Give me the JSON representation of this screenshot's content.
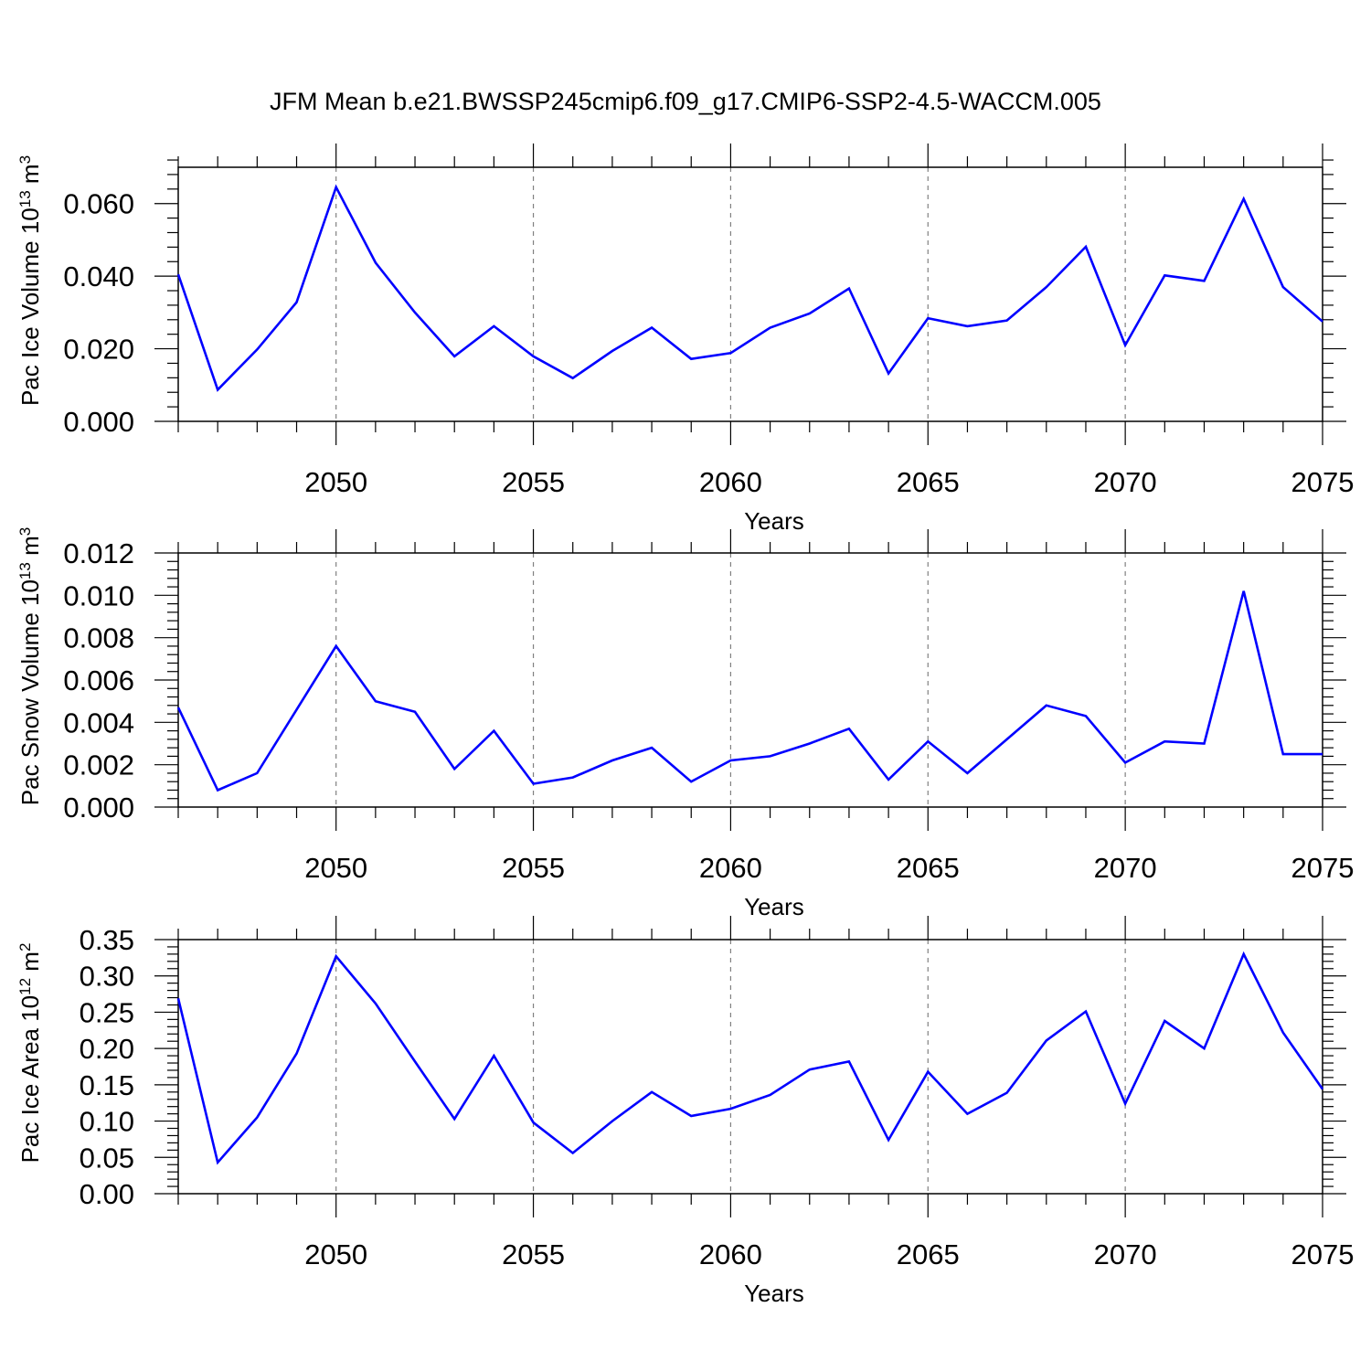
{
  "figure": {
    "title": "JFM Mean b.e21.BWSSP245cmip6.f09_g17.CMIP6-SSP2-4.5-WACCM.005",
    "line_color": "#0000ff",
    "grid_color": "#808080"
  },
  "chart_data": [
    {
      "type": "line",
      "xlabel": "Years",
      "ylabel": {
        "text": "Pac Ice Volume 10",
        "exp": "13",
        "unit": " m",
        "unit_exp": "3"
      },
      "xlim": [
        2046,
        2075
      ],
      "ylim": [
        0,
        0.07
      ],
      "xticks": [
        2050,
        2055,
        2060,
        2065,
        2070,
        2075
      ],
      "yticks": [
        0.0,
        0.02,
        0.04,
        0.06
      ],
      "ytick_labels": [
        "0.000",
        "0.020",
        "0.040",
        "0.060"
      ],
      "ytick_decimals": 3,
      "grid": "vertical dashed lines at labeled x ticks",
      "x": [
        2046,
        2047,
        2048,
        2049,
        2050,
        2051,
        2052,
        2053,
        2054,
        2055,
        2056,
        2057,
        2058,
        2059,
        2060,
        2061,
        2062,
        2063,
        2064,
        2065,
        2066,
        2067,
        2068,
        2069,
        2070,
        2071,
        2072,
        2073,
        2074,
        2075
      ],
      "y": [
        0.0405,
        0.0087,
        0.0198,
        0.0328,
        0.0645,
        0.0437,
        0.03,
        0.0179,
        0.0262,
        0.0179,
        0.0119,
        0.0194,
        0.0258,
        0.0172,
        0.0188,
        0.0258,
        0.0297,
        0.0366,
        0.0132,
        0.0284,
        0.0262,
        0.0278,
        0.037,
        0.0481,
        0.021,
        0.0402,
        0.0387,
        0.0613,
        0.037,
        0.0275
      ]
    },
    {
      "type": "line",
      "xlabel": "Years",
      "ylabel": {
        "text": "Pac Snow Volume 10",
        "exp": "13",
        "unit": " m",
        "unit_exp": "3"
      },
      "xlim": [
        2046,
        2075
      ],
      "ylim": [
        0,
        0.012
      ],
      "xticks": [
        2050,
        2055,
        2060,
        2065,
        2070,
        2075
      ],
      "yticks": [
        0.0,
        0.002,
        0.004,
        0.006,
        0.008,
        0.01,
        0.012
      ],
      "ytick_labels": [
        "0.000",
        "0.002",
        "0.004",
        "0.006",
        "0.008",
        "0.010",
        "0.012"
      ],
      "ytick_decimals": 3,
      "grid": "vertical dashed lines at labeled x ticks",
      "x": [
        2046,
        2047,
        2048,
        2049,
        2050,
        2051,
        2052,
        2053,
        2054,
        2055,
        2056,
        2057,
        2058,
        2059,
        2060,
        2061,
        2062,
        2063,
        2064,
        2065,
        2066,
        2067,
        2068,
        2069,
        2070,
        2071,
        2072,
        2073,
        2074,
        2075
      ],
      "y": [
        0.0047,
        0.0008,
        0.0016,
        0.0046,
        0.0076,
        0.005,
        0.0045,
        0.0018,
        0.0036,
        0.0011,
        0.0014,
        0.0022,
        0.0028,
        0.0012,
        0.0022,
        0.0024,
        0.003,
        0.0037,
        0.0013,
        0.0031,
        0.0016,
        0.0032,
        0.0048,
        0.0043,
        0.0021,
        0.0031,
        0.003,
        0.0102,
        0.0025,
        0.0025
      ]
    },
    {
      "type": "line",
      "xlabel": "Years",
      "ylabel": {
        "text": "Pac Ice Area 10",
        "exp": "12",
        "unit": " m",
        "unit_exp": "2"
      },
      "xlim": [
        2046,
        2075
      ],
      "ylim": [
        0,
        0.35
      ],
      "xticks": [
        2050,
        2055,
        2060,
        2065,
        2070,
        2075
      ],
      "yticks": [
        0.0,
        0.05,
        0.1,
        0.15,
        0.2,
        0.25,
        0.3,
        0.35
      ],
      "ytick_labels": [
        "0.00",
        "0.05",
        "0.10",
        "0.15",
        "0.20",
        "0.25",
        "0.30",
        "0.35"
      ],
      "ytick_decimals": 2,
      "grid": "vertical dashed lines at labeled x ticks",
      "x": [
        2046,
        2047,
        2048,
        2049,
        2050,
        2051,
        2052,
        2053,
        2054,
        2055,
        2056,
        2057,
        2058,
        2059,
        2060,
        2061,
        2062,
        2063,
        2064,
        2065,
        2066,
        2067,
        2068,
        2069,
        2070,
        2071,
        2072,
        2073,
        2074,
        2075
      ],
      "y": [
        0.269,
        0.043,
        0.105,
        0.193,
        0.327,
        0.262,
        0.182,
        0.103,
        0.19,
        0.098,
        0.056,
        0.1,
        0.14,
        0.107,
        0.117,
        0.136,
        0.171,
        0.182,
        0.074,
        0.168,
        0.11,
        0.139,
        0.211,
        0.251,
        0.124,
        0.238,
        0.2,
        0.33,
        0.222,
        0.144
      ]
    }
  ]
}
